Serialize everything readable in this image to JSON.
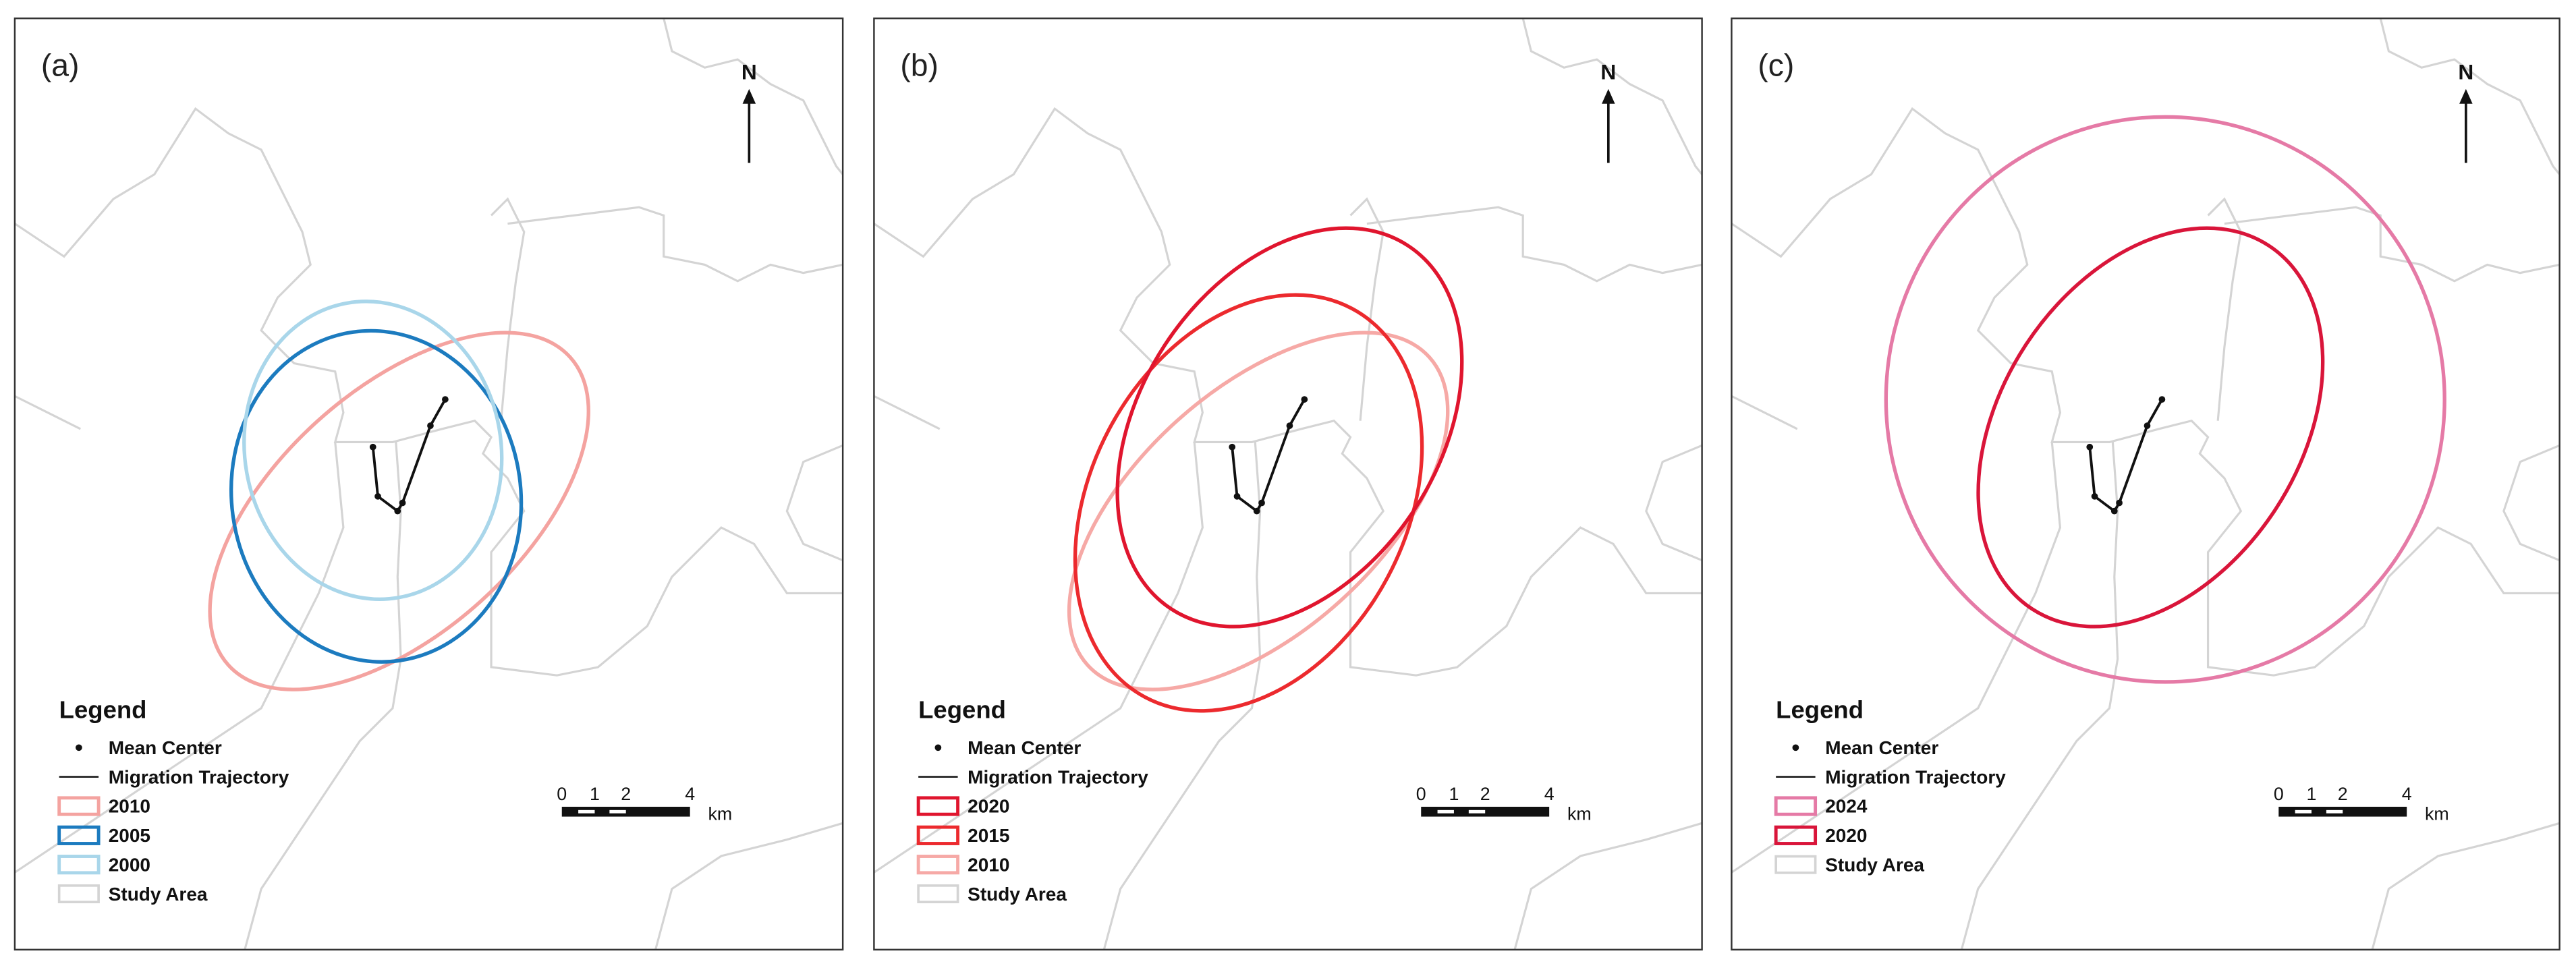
{
  "panels": [
    {
      "label": "(a)",
      "north": "N",
      "legend": {
        "title": "Legend",
        "items": [
          "Mean Center",
          "Migration Trajectory",
          "2010",
          "2005",
          "2000",
          "Study Area"
        ]
      },
      "scale_bar": {
        "ticks": [
          "0",
          "1",
          "2",
          "4"
        ],
        "unit": "km"
      }
    },
    {
      "label": "(b)",
      "north": "N",
      "legend": {
        "title": "Legend",
        "items": [
          "Mean Center",
          "Migration Trajectory",
          "2020",
          "2015",
          "2010",
          "Study Area"
        ]
      },
      "scale_bar": {
        "ticks": [
          "0",
          "1",
          "2",
          "4"
        ],
        "unit": "km"
      }
    },
    {
      "label": "(c)",
      "north": "N",
      "legend": {
        "title": "Legend",
        "items": [
          "Mean Center",
          "Migration Trajectory",
          "2024",
          "2020",
          "Study Area"
        ]
      },
      "scale_bar": {
        "ticks": [
          "0",
          "1",
          "2",
          "4"
        ],
        "unit": "km"
      }
    }
  ]
}
